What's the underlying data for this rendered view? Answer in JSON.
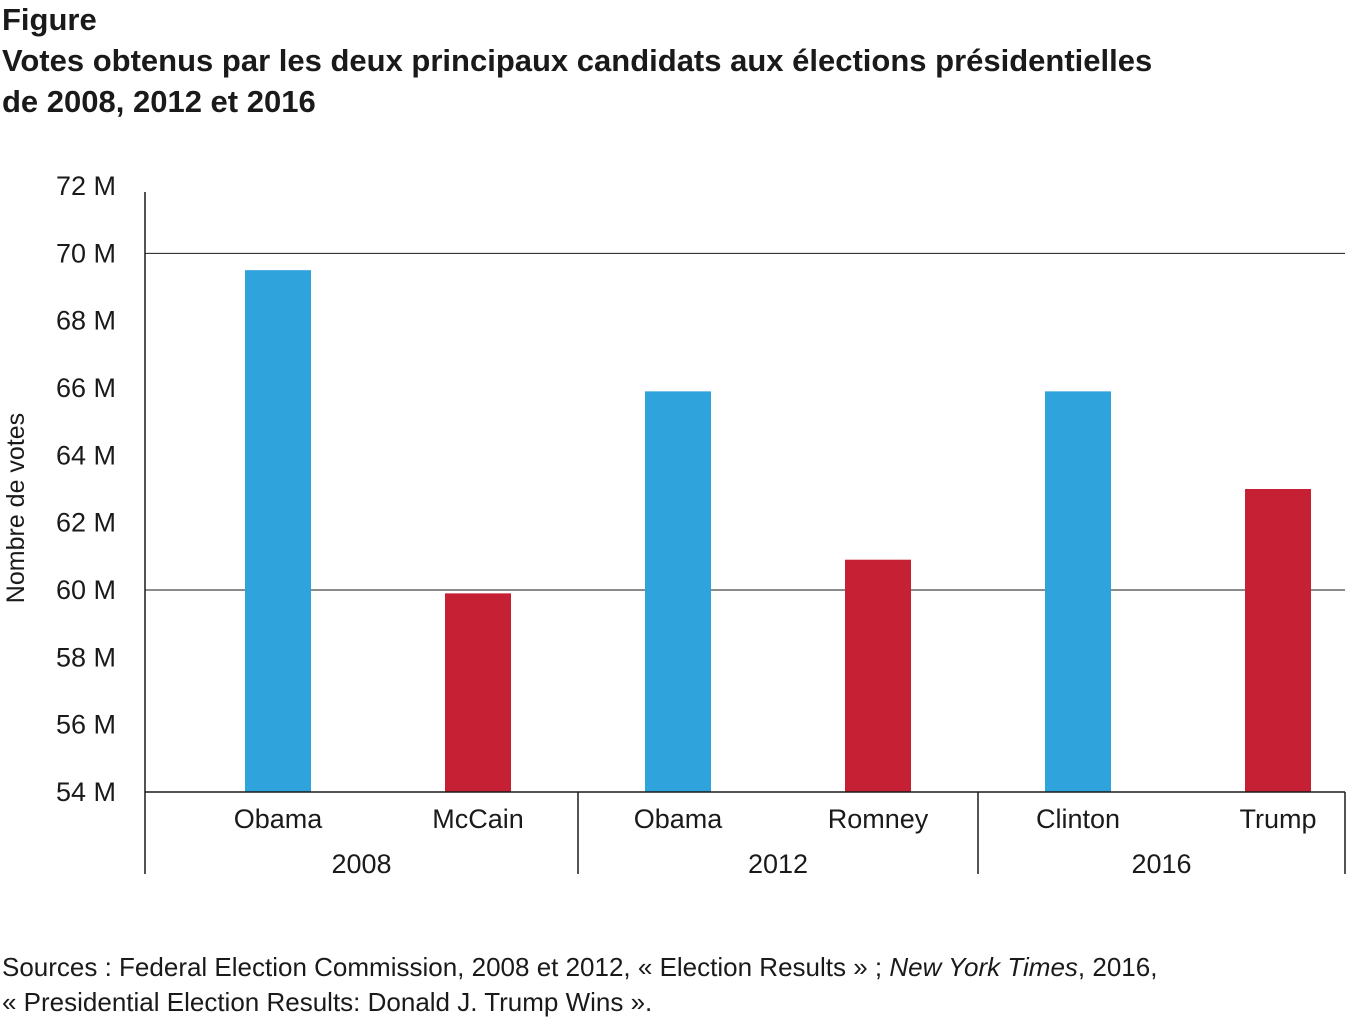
{
  "header": {
    "figure_label": "Figure",
    "title_line1": "Votes obtenus par les deux principaux candidats aux élections présidentielles",
    "title_line2": "de 2008, 2012 et 2016"
  },
  "chart_data": {
    "type": "bar",
    "ylabel": "Nombre de votes",
    "ylim": [
      54,
      72
    ],
    "yticks": [
      54,
      56,
      58,
      60,
      62,
      64,
      66,
      68,
      70,
      72
    ],
    "ytick_labels": [
      "54 M",
      "56 M",
      "58 M",
      "60 M",
      "62 M",
      "64 M",
      "66 M",
      "68 M",
      "70 M",
      "72 M"
    ],
    "gridlines": [
      60,
      70
    ],
    "groups": [
      {
        "year": "2008",
        "bars": [
          {
            "candidate": "Obama",
            "value": 69.5,
            "party": "dem"
          },
          {
            "candidate": "McCain",
            "value": 59.9,
            "party": "rep"
          }
        ]
      },
      {
        "year": "2012",
        "bars": [
          {
            "candidate": "Obama",
            "value": 65.9,
            "party": "dem"
          },
          {
            "candidate": "Romney",
            "value": 60.9,
            "party": "rep"
          }
        ]
      },
      {
        "year": "2016",
        "bars": [
          {
            "candidate": "Clinton",
            "value": 65.9,
            "party": "dem"
          },
          {
            "candidate": "Trump",
            "value": 63.0,
            "party": "rep"
          }
        ]
      }
    ],
    "colors": {
      "dem": "#2fa3dc",
      "rep": "#c52034"
    }
  },
  "sources": {
    "prefix": "Sources : Federal Election Commission, 2008 et 2012, « Election Results » ; ",
    "publication": "New York Times",
    "suffix": ", 2016,",
    "line2": "« Presidential Election Results: Donald J. Trump Wins »."
  }
}
